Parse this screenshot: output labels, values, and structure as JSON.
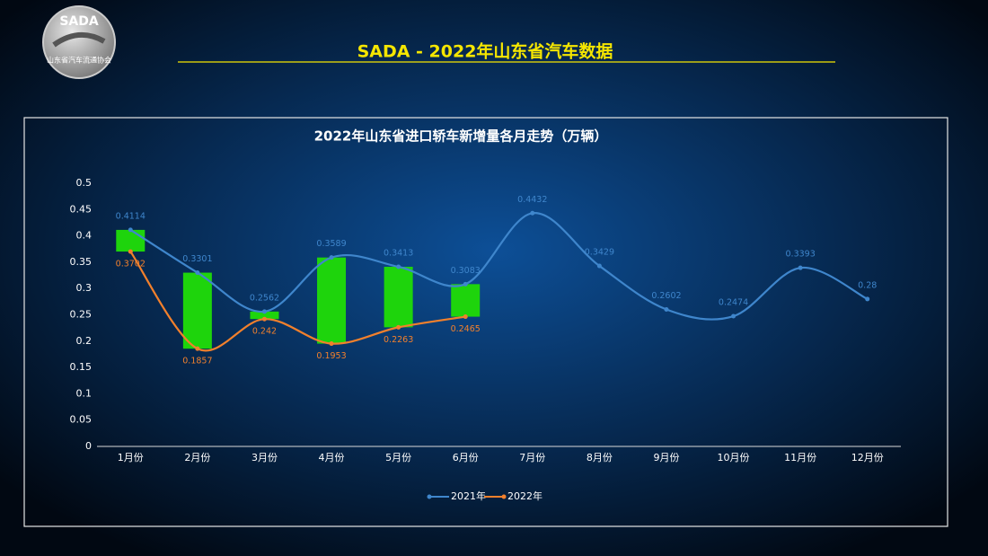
{
  "logo": {
    "name": "SADA",
    "org": "山东省汽车流通协会"
  },
  "header": {
    "title": "SADA -  2022年山东省汽车数据"
  },
  "chart_data": {
    "type": "line",
    "title": "2022年山东省进口轿车新增量各月走势（万辆）",
    "categories": [
      "1月份",
      "2月份",
      "3月份",
      "4月份",
      "5月份",
      "6月份",
      "7月份",
      "8月份",
      "9月份",
      "10月份",
      "11月份",
      "12月份"
    ],
    "series": [
      {
        "name": "2021年",
        "color": "#3f86cc",
        "values": [
          0.4114,
          0.3301,
          0.2562,
          0.3589,
          0.3413,
          0.3083,
          0.4432,
          0.3429,
          0.2602,
          0.2474,
          0.3393,
          0.28
        ]
      },
      {
        "name": "2022年",
        "color": "#f2802c",
        "values": [
          0.3702,
          0.1857,
          0.242,
          0.1953,
          0.2263,
          0.2465,
          null,
          null,
          null,
          null,
          null,
          null
        ]
      }
    ],
    "updown_color": "#1ed40c",
    "ylim": [
      0,
      0.5
    ],
    "yticks": [
      0,
      0.05,
      0.1,
      0.15,
      0.2,
      0.25,
      0.3,
      0.35,
      0.4,
      0.45,
      0.5
    ],
    "smooth": true,
    "legend": "bottom"
  }
}
